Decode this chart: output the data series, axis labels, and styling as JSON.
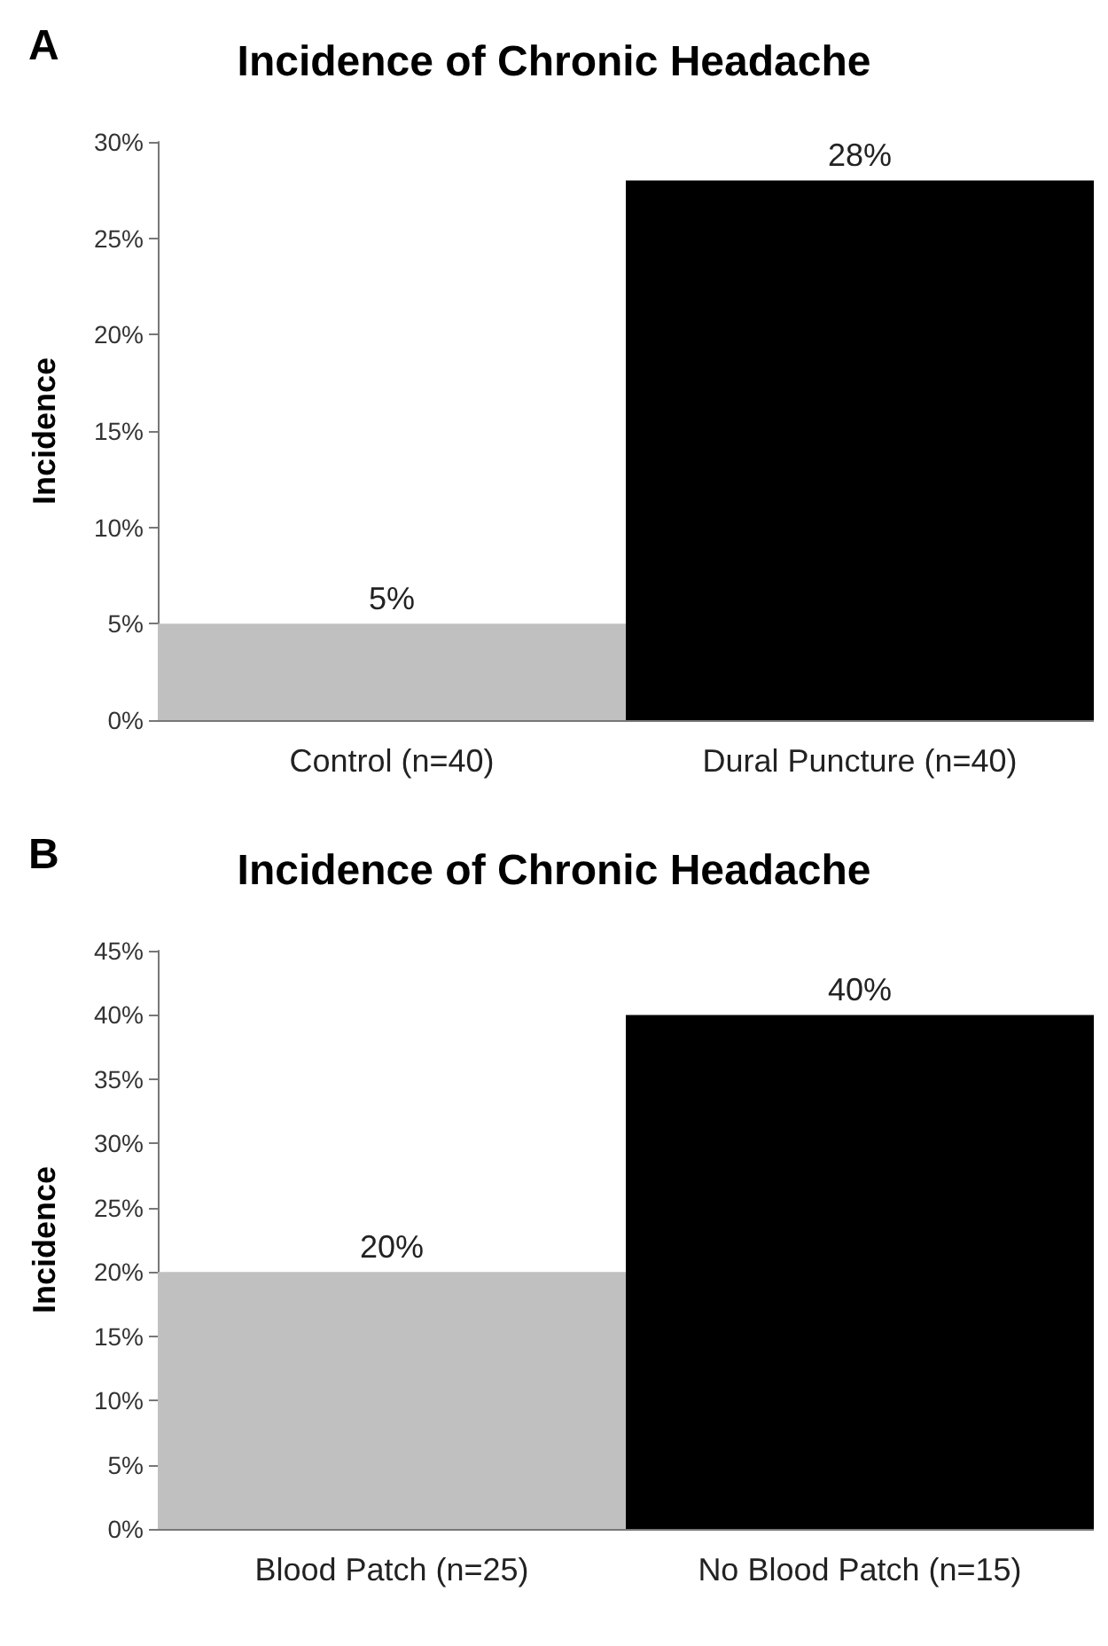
{
  "chart_data": [
    {
      "type": "bar",
      "title": "Incidence of Chronic Headache",
      "ylabel": "Incidence",
      "annotations": [
        "A"
      ],
      "categories": [
        "Control (n=40)",
        "Dural Puncture (n=40)"
      ],
      "values": [
        5,
        28
      ],
      "colors": [
        "#c0c0c0",
        "#000000"
      ],
      "value_labels": [
        "5%",
        "28%"
      ],
      "ylim": [
        0,
        30
      ],
      "yticks": [
        {
          "value": 0,
          "label": "0%"
        },
        {
          "value": 5,
          "label": "5%"
        },
        {
          "value": 10,
          "label": "10%"
        },
        {
          "value": 15,
          "label": "15%"
        },
        {
          "value": 20,
          "label": "20%"
        },
        {
          "value": 25,
          "label": "25%"
        },
        {
          "value": 30,
          "label": "30%"
        }
      ],
      "grid": false
    },
    {
      "type": "bar",
      "title": "Incidence of Chronic Headache",
      "ylabel": "Incidence",
      "annotations": [
        "B"
      ],
      "categories": [
        "Blood Patch (n=25)",
        "No Blood Patch (n=15)"
      ],
      "values": [
        20,
        40
      ],
      "colors": [
        "#c0c0c0",
        "#000000"
      ],
      "value_labels": [
        "20%",
        "40%"
      ],
      "ylim": [
        0,
        45
      ],
      "yticks": [
        {
          "value": 0,
          "label": "0%"
        },
        {
          "value": 5,
          "label": "5%"
        },
        {
          "value": 10,
          "label": "10%"
        },
        {
          "value": 15,
          "label": "15%"
        },
        {
          "value": 20,
          "label": "20%"
        },
        {
          "value": 25,
          "label": "25%"
        },
        {
          "value": 30,
          "label": "30%"
        },
        {
          "value": 35,
          "label": "35%"
        },
        {
          "value": 40,
          "label": "40%"
        },
        {
          "value": 45,
          "label": "45%"
        }
      ],
      "grid": false
    }
  ]
}
